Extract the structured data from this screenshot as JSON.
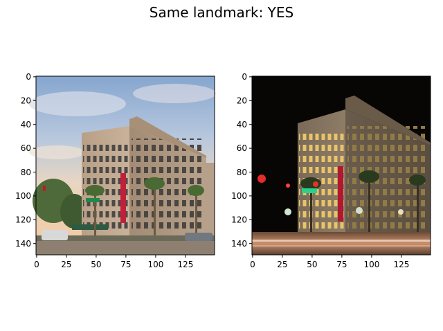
{
  "figure": {
    "title": "Same landmark: YES"
  },
  "panels": [
    {
      "id": "left",
      "description_scene": "daytime",
      "x_ticks": [
        "0",
        "25",
        "50",
        "75",
        "100",
        "125"
      ],
      "y_ticks": [
        "0",
        "20",
        "40",
        "60",
        "80",
        "100",
        "120",
        "140"
      ]
    },
    {
      "id": "right",
      "description_scene": "night",
      "x_ticks": [
        "0",
        "25",
        "50",
        "75",
        "100",
        "125"
      ],
      "y_ticks": [
        "0",
        "20",
        "40",
        "60",
        "80",
        "100",
        "120",
        "140"
      ]
    }
  ]
}
